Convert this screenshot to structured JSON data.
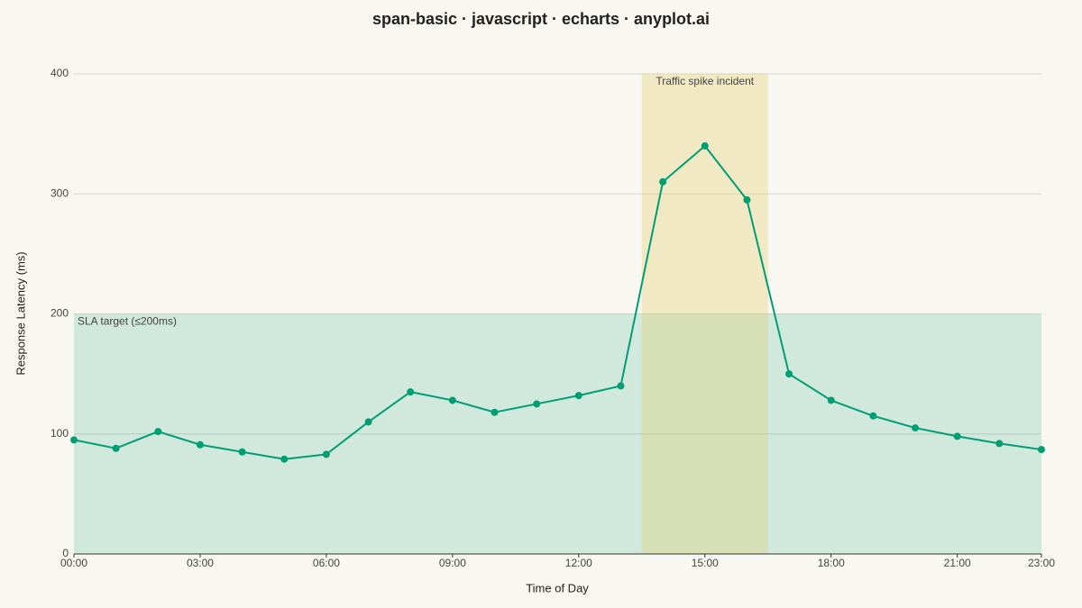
{
  "chart_data": {
    "type": "line",
    "title": "span-basic · javascript · echarts · anyplot.ai",
    "x_label": "Time of Day",
    "y_label": "Response Latency (ms)",
    "x": [
      0,
      1,
      2,
      3,
      4,
      5,
      6,
      7,
      8,
      9,
      10,
      11,
      12,
      13,
      14,
      15,
      16,
      17,
      18,
      19,
      20,
      21,
      22,
      23
    ],
    "series": [
      {
        "name": "Response Latency",
        "color": "#009e73",
        "values": [
          95,
          88,
          102,
          91,
          85,
          79,
          83,
          110,
          135,
          128,
          118,
          125,
          132,
          140,
          310,
          340,
          295,
          150,
          128,
          115,
          105,
          98,
          92,
          87
        ]
      }
    ],
    "xlim": [
      0,
      23
    ],
    "xticks": [
      {
        "value": 0,
        "label": "00:00"
      },
      {
        "value": 3,
        "label": "03:00"
      },
      {
        "value": 6,
        "label": "06:00"
      },
      {
        "value": 9,
        "label": "09:00"
      },
      {
        "value": 12,
        "label": "12:00"
      },
      {
        "value": 15,
        "label": "15:00"
      },
      {
        "value": 18,
        "label": "18:00"
      },
      {
        "value": 21,
        "label": "21:00"
      },
      {
        "value": 23,
        "label": "23:00"
      }
    ],
    "ylim": [
      0,
      400
    ],
    "yticks": [
      0,
      100,
      200,
      300,
      400
    ],
    "grid": true,
    "spans": [
      {
        "axis": "y",
        "range": [
          0,
          200
        ],
        "label": "SLA target (≤200ms)",
        "color": "rgba(0,158,115,0.16)"
      },
      {
        "axis": "x",
        "range": [
          13.5,
          16.5
        ],
        "label": "Traffic spike incident",
        "color": "rgba(225,205,100,0.32)"
      }
    ]
  }
}
